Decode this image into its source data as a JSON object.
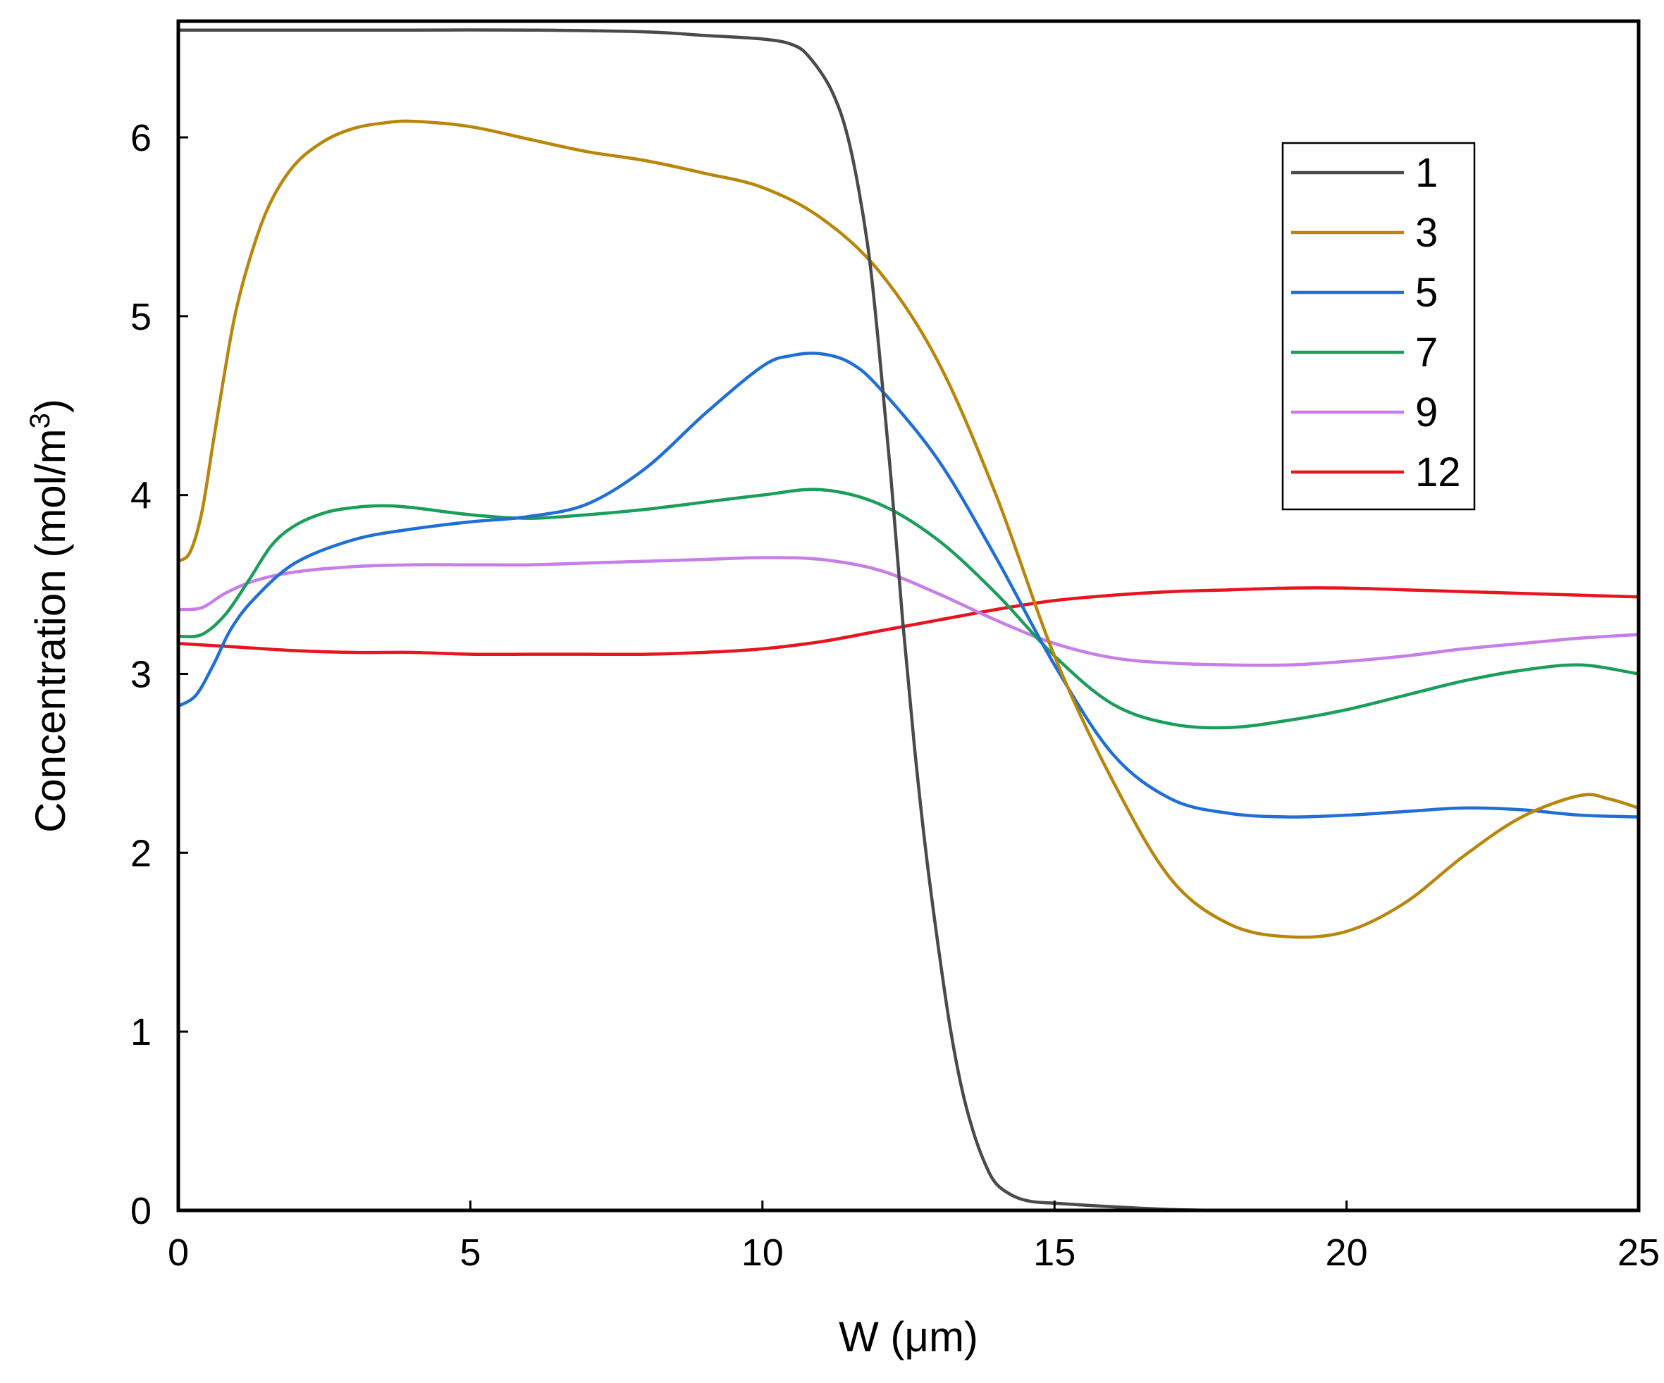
{
  "chart_data": {
    "type": "line",
    "title": "",
    "xlabel": "W (μm)",
    "ylabel": "Concentration (mol/m",
    "ylabel_sup": "3",
    "ylabel_close": ")",
    "xlim": [
      0,
      25
    ],
    "ylim": [
      0,
      6.65
    ],
    "xticks": [
      0,
      5,
      10,
      15,
      20,
      25
    ],
    "yticks": [
      0,
      1,
      2,
      3,
      4,
      5,
      6
    ],
    "xtick_labels": [
      "0",
      "5",
      "10",
      "15",
      "20",
      "25"
    ],
    "ytick_labels": [
      "0",
      "1",
      "2",
      "3",
      "4",
      "5",
      "6"
    ],
    "grid": false,
    "legend_position": "top-right",
    "series": [
      {
        "name": "1",
        "color": "#4a4a4a",
        "x": [
          0,
          2,
          4,
          6,
          8,
          9,
          10,
          10.5,
          10.8,
          11.2,
          11.5,
          11.8,
          12.0,
          12.2,
          12.4,
          12.6,
          12.8,
          13.0,
          13.2,
          13.4,
          13.6,
          13.8,
          14.0,
          14.3,
          14.6,
          15,
          16,
          17,
          18,
          20,
          22,
          25
        ],
        "y": [
          6.6,
          6.6,
          6.6,
          6.6,
          6.59,
          6.57,
          6.55,
          6.52,
          6.45,
          6.25,
          5.95,
          5.4,
          4.8,
          4.1,
          3.3,
          2.6,
          2.0,
          1.5,
          1.05,
          0.7,
          0.45,
          0.27,
          0.15,
          0.08,
          0.05,
          0.04,
          0.02,
          0.005,
          0,
          0,
          0,
          0
        ]
      },
      {
        "name": "3",
        "color": "#b8860b",
        "x": [
          0,
          0.2,
          0.4,
          0.6,
          0.8,
          1.0,
          1.3,
          1.6,
          2.0,
          2.5,
          3.0,
          3.5,
          4.0,
          5,
          6,
          7,
          8,
          9,
          10,
          11,
          12,
          13,
          14,
          15,
          16,
          17,
          18,
          19,
          20,
          21,
          22,
          23,
          24,
          24.5,
          25
        ],
        "y": [
          3.63,
          3.68,
          3.9,
          4.3,
          4.7,
          5.05,
          5.4,
          5.65,
          5.85,
          5.98,
          6.05,
          6.08,
          6.09,
          6.06,
          5.99,
          5.92,
          5.87,
          5.8,
          5.72,
          5.55,
          5.25,
          4.75,
          4.0,
          3.1,
          2.4,
          1.85,
          1.6,
          1.53,
          1.56,
          1.72,
          1.98,
          2.2,
          2.32,
          2.3,
          2.25
        ]
      },
      {
        "name": "5",
        "color": "#1f6fd6",
        "x": [
          0,
          0.3,
          0.6,
          0.9,
          1.3,
          2,
          3,
          4,
          5,
          6,
          7,
          8,
          9,
          10,
          10.5,
          11,
          11.5,
          12,
          13,
          14,
          15,
          16,
          17,
          18,
          19,
          20,
          21,
          22,
          23,
          24,
          25
        ],
        "y": [
          2.82,
          2.88,
          3.05,
          3.25,
          3.42,
          3.62,
          3.75,
          3.81,
          3.85,
          3.88,
          3.95,
          4.15,
          4.45,
          4.72,
          4.78,
          4.79,
          4.74,
          4.6,
          4.2,
          3.65,
          3.05,
          2.55,
          2.3,
          2.22,
          2.2,
          2.21,
          2.23,
          2.25,
          2.24,
          2.21,
          2.2
        ]
      },
      {
        "name": "7",
        "color": "#1a9e5a",
        "x": [
          0,
          0.4,
          0.8,
          1.2,
          1.6,
          2,
          2.5,
          3,
          3.5,
          4,
          5,
          6,
          7,
          8,
          9,
          10,
          11,
          12,
          13,
          14,
          15,
          16,
          17,
          18,
          19,
          20,
          21,
          22,
          23,
          24,
          25
        ],
        "y": [
          3.21,
          3.22,
          3.33,
          3.52,
          3.72,
          3.83,
          3.9,
          3.93,
          3.94,
          3.93,
          3.89,
          3.87,
          3.89,
          3.92,
          3.96,
          4.0,
          4.03,
          3.95,
          3.75,
          3.45,
          3.1,
          2.83,
          2.72,
          2.7,
          2.74,
          2.8,
          2.88,
          2.96,
          3.02,
          3.05,
          3.0
        ]
      },
      {
        "name": "9",
        "color": "#c77ee6",
        "x": [
          0,
          0.4,
          0.8,
          1.3,
          2,
          3,
          4,
          5,
          6,
          7,
          8,
          9,
          10,
          11,
          12,
          13,
          14,
          15,
          16,
          17,
          18,
          19,
          20,
          21,
          22,
          23,
          24,
          25
        ],
        "y": [
          3.36,
          3.37,
          3.45,
          3.52,
          3.57,
          3.6,
          3.61,
          3.61,
          3.61,
          3.62,
          3.63,
          3.64,
          3.65,
          3.64,
          3.58,
          3.45,
          3.3,
          3.17,
          3.09,
          3.06,
          3.05,
          3.05,
          3.07,
          3.1,
          3.14,
          3.17,
          3.2,
          3.22
        ]
      },
      {
        "name": "12",
        "color": "#e8141e",
        "x": [
          0,
          1,
          2,
          3,
          4,
          5,
          6,
          7,
          8,
          9,
          10,
          11,
          12,
          13,
          14,
          15,
          16,
          17,
          18,
          19,
          20,
          21,
          22,
          23,
          24,
          25
        ],
        "y": [
          3.17,
          3.15,
          3.13,
          3.12,
          3.12,
          3.11,
          3.11,
          3.11,
          3.11,
          3.12,
          3.14,
          3.18,
          3.24,
          3.3,
          3.36,
          3.41,
          3.44,
          3.46,
          3.47,
          3.48,
          3.48,
          3.47,
          3.46,
          3.45,
          3.44,
          3.43
        ]
      }
    ]
  }
}
